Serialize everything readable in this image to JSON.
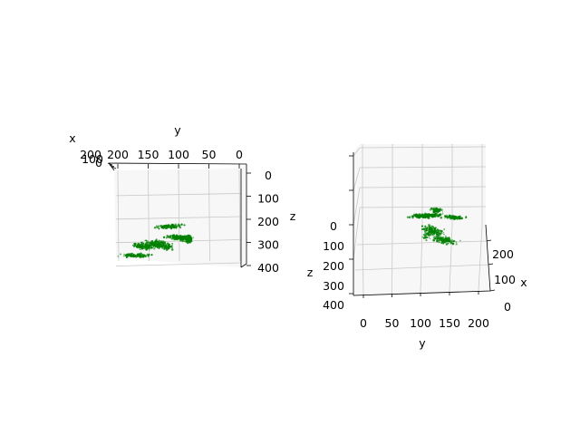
{
  "chart_data": [
    {
      "type": "scatter",
      "projection": "3d",
      "view": "top-down, y axis reversed along top edge, z axis increasing downward on right side",
      "axes": {
        "x": {
          "label": "x",
          "ticks": [
            "200",
            "100",
            "0"
          ],
          "range": [
            0,
            200
          ]
        },
        "y": {
          "label": "y",
          "ticks": [
            "200",
            "150",
            "100",
            "50",
            "0"
          ],
          "range": [
            0,
            220
          ]
        },
        "z": {
          "label": "z",
          "ticks": [
            "0",
            "100",
            "200",
            "300",
            "400"
          ],
          "range": [
            0,
            400
          ]
        }
      },
      "grid": true,
      "series": [
        {
          "color": "#008000",
          "marker": "dot",
          "approx_points": 900
        }
      ]
    },
    {
      "type": "scatter",
      "projection": "3d",
      "view": "elevated perspective, z axis increasing downward on left side",
      "axes": {
        "x": {
          "label": "x",
          "ticks": [
            "0",
            "100",
            "200"
          ],
          "range": [
            0,
            250
          ]
        },
        "y": {
          "label": "y",
          "ticks": [
            "0",
            "50",
            "100",
            "150",
            "200"
          ],
          "range": [
            0,
            210
          ]
        },
        "z": {
          "label": "z",
          "ticks": [
            "0",
            "100",
            "200",
            "300",
            "400"
          ],
          "range": [
            0,
            400
          ]
        }
      },
      "grid": true,
      "series": [
        {
          "color": "#008000",
          "marker": "dot",
          "approx_points": 700
        }
      ]
    }
  ]
}
